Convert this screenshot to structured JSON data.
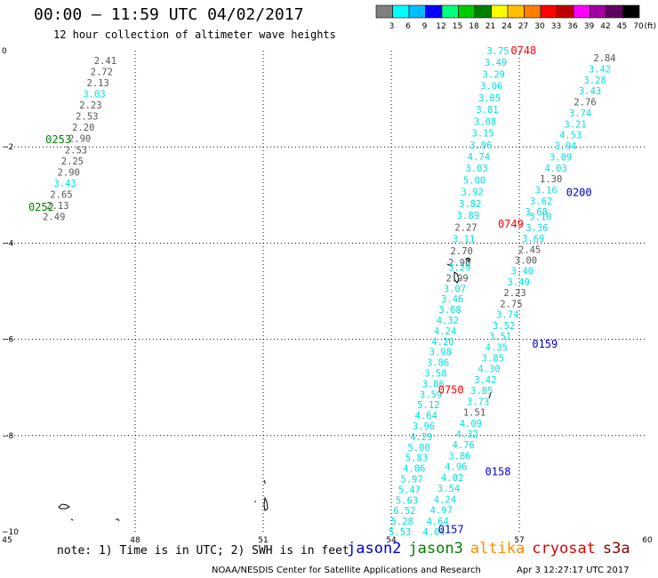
{
  "header": {
    "title": "00:00 – 11:59 UTC 04/02/2017",
    "subtitle": "12 hour collection of altimeter wave heights"
  },
  "scale": {
    "unit": "(ft)",
    "ticks": [
      "3",
      "6",
      "9",
      "12",
      "15",
      "18",
      "21",
      "24",
      "27",
      "30",
      "33",
      "36",
      "39",
      "42",
      "45",
      "70"
    ],
    "colors": [
      "#808080",
      "#00ffff",
      "#00bfff",
      "#0000ff",
      "#00ff80",
      "#00cc00",
      "#008000",
      "#ffff00",
      "#ffc000",
      "#ff8000",
      "#ff0000",
      "#c00000",
      "#ff00ff",
      "#a000a0",
      "#600060",
      "#000000"
    ]
  },
  "map": {
    "x_range": [
      45,
      60
    ],
    "y_range": [
      -10,
      0
    ],
    "x_ticks": [
      "45",
      "48",
      "51",
      "54",
      "57",
      "60"
    ],
    "y_ticks": [
      "0",
      "−2",
      "−4",
      "−6",
      "−8",
      "−10"
    ]
  },
  "tracks": [
    {
      "name": "track-west",
      "start": [
        47.3,
        -0.2
      ],
      "end": [
        46.1,
        -3.45
      ],
      "values": [
        "2.41",
        "2.72",
        "2.13",
        "3.03",
        "2.23",
        "2.53",
        "2.20",
        "2.90",
        "2.53",
        "2.25",
        "2.90",
        "3.43",
        "2.65",
        "2.13",
        "2.49"
      ],
      "colors": [
        "g",
        "g",
        "g",
        "c",
        "g",
        "g",
        "g",
        "g",
        "g",
        "g",
        "g",
        "c",
        "g",
        "g",
        "g"
      ],
      "times": [
        {
          "label": "0253",
          "color": "#008000",
          "lon": 46.2,
          "lat": -1.85
        },
        {
          "label": "0252",
          "color": "#008000",
          "lon": 45.8,
          "lat": -3.25
        }
      ]
    },
    {
      "name": "track-central",
      "start": [
        56.5,
        0.0
      ],
      "end": [
        55.6,
        -4.4
      ],
      "values": [
        "3.75",
        "3.49",
        "3.29",
        "3.06",
        "3.85",
        "3.81",
        "3.08",
        "3.15",
        "3.96",
        "4.74",
        "3.03",
        "5.00",
        "3.92",
        "3.82",
        "3.89",
        "2.27",
        "3.11",
        "2.70",
        "2.90"
      ],
      "colors": [
        "c",
        "c",
        "c",
        "c",
        "c",
        "c",
        "c",
        "c",
        "c",
        "c",
        "c",
        "c",
        "c",
        "c",
        "c",
        "g",
        "c",
        "g",
        "g"
      ],
      "times": [
        {
          "label": "0748",
          "color": "#ff0000",
          "lon": 57.1,
          "lat": 0.0
        },
        {
          "label": "0749",
          "color": "#ff0000",
          "lon": 56.8,
          "lat": -3.6
        }
      ]
    },
    {
      "name": "track-central-south",
      "start": [
        55.6,
        -4.5
      ],
      "end": [
        54.2,
        -10.0
      ],
      "values": [
        "3.29",
        "2.99",
        "3.07",
        "3.46",
        "3.68",
        "4.32",
        "4.24",
        "4.20",
        "3.98",
        "3.86",
        "3.58",
        "3.86",
        "3.59",
        "5.12",
        "4.64",
        "3.96",
        "4.29",
        "5.00",
        "5.83",
        "4.06",
        "5.97",
        "5.47",
        "5.63",
        "6.52",
        "5.28",
        "5.53"
      ],
      "colors": [
        "c",
        "g",
        "c",
        "c",
        "c",
        "c",
        "c",
        "c",
        "c",
        "c",
        "c",
        "c",
        "c",
        "c",
        "c",
        "c",
        "c",
        "c",
        "c",
        "c",
        "c",
        "c",
        "c",
        "c",
        "c",
        "c"
      ],
      "times": [
        {
          "label": "0750",
          "color": "#ff0000",
          "lon": 55.4,
          "lat": -7.05
        }
      ]
    },
    {
      "name": "track-east",
      "start": [
        59.0,
        -0.15
      ],
      "end": [
        57.4,
        -3.35
      ],
      "values": [
        "2.84",
        "3.42",
        "3.28",
        "3.43",
        "2.76",
        "3.74",
        "3.21",
        "4.53",
        "3.94",
        "3.09",
        "4.03",
        "1.30",
        "3.16",
        "3.62",
        "3.68"
      ],
      "colors": [
        "g",
        "c",
        "c",
        "c",
        "g",
        "c",
        "c",
        "c",
        "c",
        "c",
        "c",
        "g",
        "c",
        "c",
        "c"
      ],
      "times": [
        {
          "label": "0200",
          "color": "#0000cc",
          "lon": 58.4,
          "lat": -2.95
        }
      ]
    },
    {
      "name": "track-east-south",
      "start": [
        57.5,
        -3.45
      ],
      "end": [
        55.0,
        -10.0
      ],
      "values": [
        "5.10",
        "3.36",
        "3.69",
        "2.45",
        "3.00",
        "3.40",
        "3.49",
        "2.23",
        "2.75",
        "3.74",
        "3.52",
        "3.51",
        "4.35",
        "3.85",
        "4.30",
        "3.42",
        "3.85",
        "3.73",
        "1.51",
        "4.09",
        "4.32",
        "4.76",
        "3.86",
        "4.96",
        "4.02",
        "3.54",
        "4.24",
        "4.97",
        "4.64",
        "4.04"
      ],
      "colors": [
        "c",
        "c",
        "c",
        "g",
        "g",
        "c",
        "c",
        "g",
        "g",
        "c",
        "c",
        "c",
        "c",
        "c",
        "c",
        "c",
        "c",
        "c",
        "g",
        "c",
        "c",
        "c",
        "c",
        "c",
        "c",
        "c",
        "c",
        "c",
        "c",
        "c"
      ],
      "times": [
        {
          "label": "0159",
          "color": "#0000cc",
          "lon": 57.6,
          "lat": -6.1
        },
        {
          "label": "0158",
          "color": "#0000cc",
          "lon": 56.5,
          "lat": -8.75
        },
        {
          "label": "0157",
          "color": "#0000cc",
          "lon": 55.4,
          "lat": -9.95
        }
      ]
    }
  ],
  "note": "note: 1) Time is in UTC; 2) SWH is in feet",
  "satellites": [
    {
      "name": "jason2",
      "color": "#0000cc"
    },
    {
      "name": "jason3",
      "color": "#008000"
    },
    {
      "name": "altika",
      "color": "#ff8c00"
    },
    {
      "name": "cryosat",
      "color": "#dd0000"
    },
    {
      "name": "s3a",
      "color": "#880000"
    }
  ],
  "footer": {
    "credit": "NOAA/NESDIS Center for Satellite Applications and Research",
    "timestamp": "Apr  3 12:27:17 UTC 2017"
  }
}
